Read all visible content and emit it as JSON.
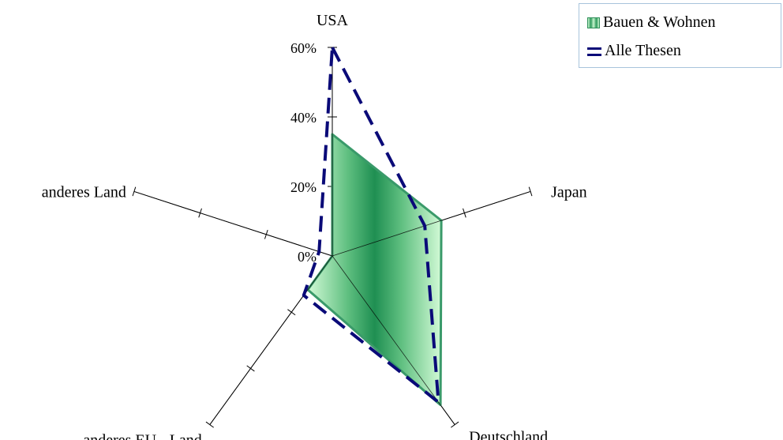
{
  "chart_data": {
    "type": "radar",
    "categories": [
      "USA",
      "Japan",
      "Deutschland",
      "anderes EU - Land",
      "anderes Land"
    ],
    "tick_labels": [
      "0%",
      "20%",
      "40%",
      "60%"
    ],
    "rmax": 60,
    "ticks": [
      0,
      20,
      40,
      60
    ],
    "series": [
      {
        "name": "Bauen & Wohnen",
        "values": [
          35,
          33,
          53,
          12,
          0
        ]
      },
      {
        "name": "Alle Thesen",
        "values": [
          60,
          28,
          52,
          14,
          4
        ]
      }
    ],
    "colors": {
      "bauen_fill_dark": "#1f8f52",
      "bauen_fill_light": "#d2fad6",
      "bauen_stroke": "#3a9a6a",
      "alle_stroke": "#0a0a78"
    },
    "legend_position": "top-right"
  }
}
